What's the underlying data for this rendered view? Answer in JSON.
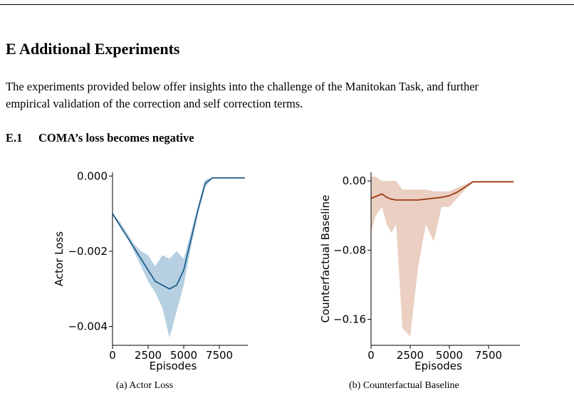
{
  "section": {
    "title": "E Additional Experiments",
    "paragraph_line1": "The experiments provided below offer insights into the challenge of the Manitokan Task, and further",
    "paragraph_line2": "empirical validation of the correction and self correction terms.",
    "subsection_number": "E.1",
    "subsection_title": "COMA’s loss becomes negative"
  },
  "figures": [
    {
      "caption": "(a) Actor Loss"
    },
    {
      "caption": "(b) Counterfactual Baseline"
    }
  ],
  "chart_data": [
    {
      "type": "line",
      "xlabel": "Episodes",
      "ylabel": "Actor Loss",
      "xlim": [
        0,
        9500
      ],
      "ylim": [
        -0.0045,
        0.0001
      ],
      "xticks": [
        "0",
        "2500",
        "5000",
        "7500"
      ],
      "yticks": [
        "0.000",
        "−0.002",
        "−0.004"
      ],
      "yticks_values": [
        0.0,
        -0.002,
        -0.004
      ],
      "xticks_values": [
        0,
        2500,
        5000,
        7500
      ],
      "grid": false,
      "colors": {
        "line": "#1f5f8b",
        "band": "#a9c8dd"
      },
      "series": [
        {
          "x": [
            0,
            500,
            1000,
            1500,
            2000,
            2500,
            3000,
            3500,
            4000,
            4500,
            5000,
            5500,
            6000,
            6500,
            7000,
            7500,
            8000,
            8500,
            9000,
            9300
          ],
          "values": [
            -0.001,
            -0.0013,
            -0.0016,
            -0.0019,
            -0.0022,
            -0.0025,
            -0.0028,
            -0.0029,
            -0.003,
            -0.0029,
            -0.0025,
            -0.0017,
            -0.0009,
            -0.0002,
            -5e-05,
            -5e-05,
            -5e-05,
            -5e-05,
            -5e-05,
            -5e-05
          ],
          "lower": [
            -0.001,
            -0.0013,
            -0.0016,
            -0.002,
            -0.0024,
            -0.0028,
            -0.0031,
            -0.0035,
            -0.0043,
            -0.0036,
            -0.0029,
            -0.0019,
            -0.001,
            -0.0003,
            -6e-05,
            -6e-05,
            -6e-05,
            -6e-05,
            -6e-05,
            -6e-05
          ],
          "upper": [
            -0.001,
            -0.0012,
            -0.0015,
            -0.0018,
            -0.002,
            -0.0021,
            -0.0024,
            -0.0021,
            -0.0022,
            -0.002,
            -0.0022,
            -0.0015,
            -0.0008,
            -0.0001,
            -4e-05,
            -4e-05,
            -4e-05,
            -4e-05,
            -4e-05,
            -4e-05
          ]
        }
      ]
    },
    {
      "type": "line",
      "xlabel": "Episodes",
      "ylabel": "Counterfactual Baseline",
      "xlim": [
        0,
        9500
      ],
      "ylim": [
        -0.19,
        0.01
      ],
      "xticks": [
        "0",
        "2500",
        "5000",
        "7500"
      ],
      "yticks": [
        "0.00",
        "−0.08",
        "−0.16"
      ],
      "yticks_values": [
        0.0,
        -0.08,
        -0.16
      ],
      "xticks_values": [
        0,
        2500,
        5000,
        7500
      ],
      "grid": false,
      "colors": {
        "line": "#9c3a12",
        "band": "#e6c7b7"
      },
      "series": [
        {
          "x": [
            0,
            300,
            700,
            1000,
            1300,
            1600,
            2000,
            2500,
            3000,
            3500,
            4000,
            4500,
            5000,
            5500,
            6000,
            6500,
            7000,
            7500,
            8000,
            8500,
            9000,
            9100
          ],
          "values": [
            -0.02,
            -0.018,
            -0.015,
            -0.019,
            -0.021,
            -0.022,
            -0.022,
            -0.022,
            -0.022,
            -0.021,
            -0.02,
            -0.019,
            -0.017,
            -0.013,
            -0.007,
            -0.001,
            -0.001,
            -0.001,
            -0.001,
            -0.001,
            -0.001,
            -0.001
          ],
          "lower": [
            -0.06,
            -0.04,
            -0.03,
            -0.05,
            -0.06,
            -0.05,
            -0.17,
            -0.18,
            -0.1,
            -0.05,
            -0.07,
            -0.03,
            -0.03,
            -0.02,
            -0.01,
            -0.002,
            -0.002,
            -0.002,
            -0.002,
            -0.002,
            -0.002,
            -0.002
          ],
          "upper": [
            0.005,
            0.005,
            0.0,
            0.0,
            0.0,
            0.0,
            -0.01,
            -0.01,
            -0.01,
            -0.01,
            -0.012,
            -0.012,
            -0.012,
            -0.008,
            -0.004,
            0.0,
            0.0,
            0.0,
            0.0,
            0.0,
            0.0,
            0.0
          ]
        }
      ]
    }
  ]
}
